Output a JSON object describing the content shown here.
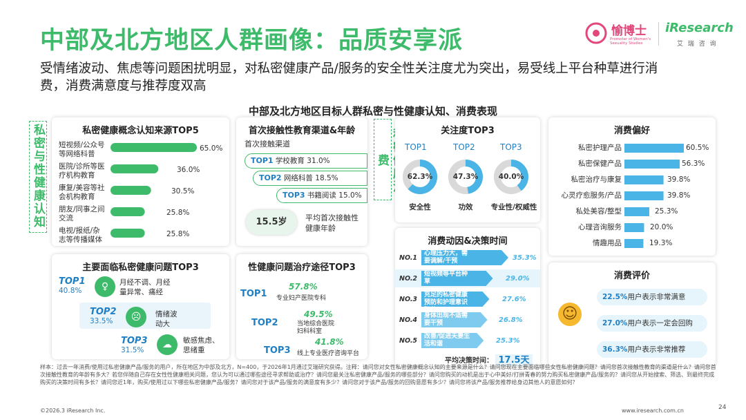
{
  "header": {
    "title": "中部及北方地区人群画像：品质安享派",
    "subtitle": "受情绪波动、焦虑等问题困扰明显，对私密健康产品/服务的安全性关注度尤为突出，易受线上平台种草进行消费，消费满意度与推荐度双高",
    "logo_yubo": "愉博士",
    "logo_yubo_sub": "Promoter of Women's Sexuality Studies",
    "logo_iresearch": "iResearch",
    "logo_iresearch_sub": "艾 瑞 咨 询"
  },
  "panel_title": "中部及北方地区目标人群私密与性健康认知、消费表现",
  "side_labels": {
    "cognition": "私密与性健康认知",
    "consumption": "私密健康消费"
  },
  "colors": {
    "green": "#3dbb6a",
    "blue": "#1f7fc4",
    "light_blue": "#4ab4e6"
  },
  "source_card": {
    "title": "私密健康概念认知来源TOP5",
    "items": [
      {
        "label": "短视频/公众号等网络科普",
        "value_text": "65.0%"
      },
      {
        "label": "医院/诊所等医疗机构教育",
        "value_text": "36.0%"
      },
      {
        "label": "康复/美容等社会机构教育",
        "value_text": "30.5%"
      },
      {
        "label": "朋友/同事之间交流",
        "value_text": "25.8%"
      },
      {
        "label": "电视/报纸/杂志等传播媒体",
        "value_text": "25.8%"
      }
    ]
  },
  "first_contact_card": {
    "title": "首次接触性教育渠道&年龄",
    "subtitle": "首次接触渠道",
    "items": [
      {
        "rank": "TOP1",
        "text": "学校教育 31.0%"
      },
      {
        "rank": "TOP2",
        "text": "网络科普 18.5%"
      },
      {
        "rank": "TOP3",
        "text": "书籍阅读 15.0%"
      }
    ],
    "age": "15.5岁",
    "age_caption": "平均首次接触性健康年龄"
  },
  "problem_card": {
    "title": "主要面临私密健康问题TOP3",
    "items": [
      {
        "rank": "TOP1",
        "pct": "40.8%",
        "text": "月经不调、月经量异常、痛经"
      },
      {
        "rank": "TOP2",
        "pct": "33.5%",
        "text": "情绪波动大"
      },
      {
        "rank": "TOP3",
        "pct": "31.5%",
        "text": "敏感焦虑、思绪重"
      }
    ]
  },
  "treatment_card": {
    "title": "性健康问题治疗途径TOP3",
    "items": [
      {
        "rank": "TOP1",
        "pct": "57.8%",
        "text": "专业妇产医院专科"
      },
      {
        "rank": "TOP2",
        "pct": "49.5%",
        "text": "当地综合医院妇科科室"
      },
      {
        "rank": "TOP3",
        "pct": "41.8%",
        "text": "线上专业医疗咨询平台"
      }
    ]
  },
  "attention_card": {
    "title": "关注度TOP3",
    "items": [
      {
        "rank": "TOP1",
        "value": 62.3,
        "value_text": "62.3%",
        "label": "安全性"
      },
      {
        "rank": "TOP2",
        "value": 47.3,
        "value_text": "47.3%",
        "label": "功效"
      },
      {
        "rank": "TOP3",
        "value": 40.0,
        "value_text": "40.0%",
        "label": "专业性/权威性"
      }
    ]
  },
  "motive_card": {
    "title": "消费动因&决策时间",
    "items": [
      {
        "rank": "NO.1",
        "text": "心理压力大，需要调解/干预",
        "value_text": "35.3%"
      },
      {
        "rank": "NO.2",
        "text": "短视频等平台种草",
        "value_text": "29.0%"
      },
      {
        "rank": "NO.3",
        "text": "充足的私密健康预防和护理意识驱使",
        "value_text": "27.6%"
      },
      {
        "rank": "NO.4",
        "text": "身体出现不适需要干预",
        "value_text": "26.8%"
      },
      {
        "rank": "NO.5",
        "text": "改善/促进夫妻生活和谐",
        "value_text": "25.3%"
      }
    ],
    "decision_label": "平均决策时间：",
    "decision_value": "17.5天"
  },
  "preference_card": {
    "title": "消费偏好",
    "items": [
      {
        "label": "私密护理产品",
        "value_text": "60.5%"
      },
      {
        "label": "私密保健产品",
        "value_text": "56.3%"
      },
      {
        "label": "私密治疗与康复",
        "value_text": "39.8%"
      },
      {
        "label": "心灵疗愈服务/产品",
        "value_text": "39.8%"
      },
      {
        "label": "私处美容/整型",
        "value_text": "25.3%"
      },
      {
        "label": "心理咨询服务",
        "value_text": "20.0%"
      },
      {
        "label": "情趣用品",
        "value_text": "19.3%"
      }
    ]
  },
  "evaluation_card": {
    "title": "消费评价",
    "items": [
      {
        "pct": "22.5%",
        "text": "用户表示非常满意"
      },
      {
        "pct": "27.0%",
        "text": "用户表示一定会回购"
      },
      {
        "pct": "36.3%",
        "text": "用户表示非常推荐"
      }
    ]
  },
  "footnote": "样本：过去一年消费/使用过私密健康产品/服务的用户，所在地区为中部及北方，N=400，于2026年1月通过艾瑞研究获得。注释：请问您对女性私密健康概念认知的主要来源是什么？请问您现在主要面临哪些女性私密健康问题？请问您首次接触性教育的渠道是什么？请问您首次接触性教育的年龄有多大？若您伴随自己存在女性性健康相关问题，您认为可以通过哪些途径寻求帮助或治疗？请问您最关注私密健康产品/服务的哪些部分？请问您购买的动机是出于心中美好/打拼青春的努力购买私密健康产品/服务的？请问您从开始搜索、筛选、到最终完成购买的决策时间有多长？请问您近1年，购买/使用过以下哪些私密健康产品/服务？请问您对于该产品/服务的满意度有多少？请问您对于该产品/服务的回购意愿有多少？请问您将该产品/服务推荐给身边其他人的意愿如何？",
  "chart_data": [
    {
      "type": "bar",
      "title": "私密健康概念认知来源TOP5",
      "categories": [
        "短视频/公众号等网络科普",
        "医院/诊所等医疗机构教育",
        "康复/美容等社会机构教育",
        "朋友/同事之间交流",
        "电视/报纸/杂志等传播媒体"
      ],
      "values": [
        65.0,
        36.0,
        30.5,
        25.8,
        25.8
      ],
      "orientation": "horizontal",
      "xlim": [
        0,
        70
      ]
    },
    {
      "type": "pie",
      "title": "关注度TOP3",
      "categories": [
        "安全性",
        "功效",
        "专业性/权威性"
      ],
      "values": [
        62.3,
        47.3,
        40.0
      ]
    },
    {
      "type": "bar",
      "title": "消费动因&决策时间",
      "categories": [
        "心理压力大，需要调解/干预",
        "短视频等平台种草",
        "充足的私密健康预防和护理意识驱使",
        "身体出现不适需要干预",
        "改善/促进夫妻生活和谐"
      ],
      "values": [
        35.3,
        29.0,
        27.6,
        26.8,
        25.3
      ],
      "orientation": "horizontal",
      "xlim": [
        0,
        40
      ]
    },
    {
      "type": "bar",
      "title": "消费偏好",
      "categories": [
        "私密护理产品",
        "私密保健产品",
        "私密治疗与康复",
        "心灵疗愈服务/产品",
        "私处美容/整型",
        "心理咨询服务",
        "情趣用品"
      ],
      "values": [
        60.5,
        56.3,
        39.8,
        39.8,
        25.3,
        20.0,
        19.3
      ],
      "orientation": "horizontal",
      "xlim": [
        0,
        65
      ]
    }
  ],
  "footer": {
    "copyright": "©2026.3 iResearch Inc.",
    "url": "www.iresearch.com.cn",
    "page": "24"
  }
}
